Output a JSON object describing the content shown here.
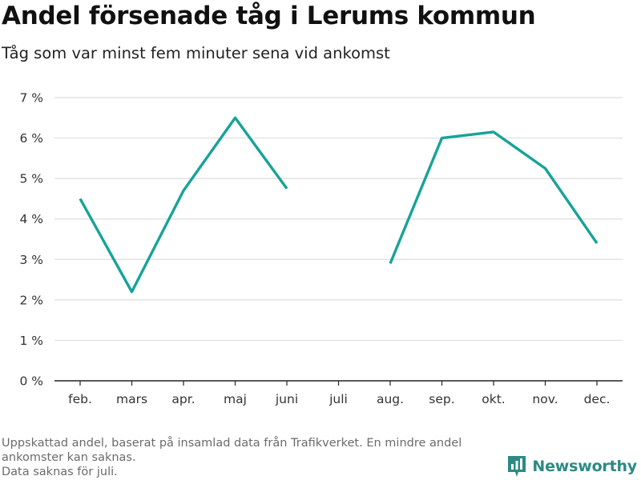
{
  "header": {
    "title": "Andel försenade tåg i Lerums kommun",
    "subtitle": "Tåg som var minst fem minuter sena vid ankomst"
  },
  "chart_data": {
    "type": "line",
    "categories": [
      "feb.",
      "mars",
      "apr.",
      "maj",
      "juni",
      "juli",
      "aug.",
      "sep.",
      "okt.",
      "nov.",
      "dec."
    ],
    "series": [
      {
        "name": "Andel försenade tåg",
        "values": [
          4.5,
          2.2,
          4.7,
          6.5,
          4.75,
          null,
          2.9,
          6.0,
          6.15,
          5.25,
          3.4
        ]
      }
    ],
    "yticks": [
      0,
      1,
      2,
      3,
      4,
      5,
      6,
      7
    ],
    "ytick_labels": [
      "0 %",
      "1 %",
      "2 %",
      "3 %",
      "4 %",
      "5 %",
      "6 %",
      "7 %"
    ],
    "ylim": [
      0,
      7
    ],
    "xlabel": "",
    "ylabel": "",
    "color": "#17a398",
    "grid": true
  },
  "footer": {
    "note_line1": "Uppskattad andel, baserat på insamlad data från Trafikverket. En mindre andel ankomster kan saknas.",
    "note_line2": "Data saknas för juli.",
    "brand": "Newsworthy",
    "brand_color": "#2c8a83"
  }
}
